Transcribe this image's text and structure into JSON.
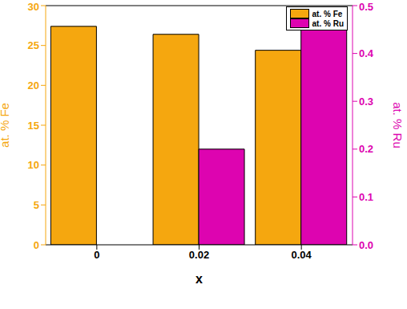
{
  "chart_data": {
    "type": "bar",
    "x_label": "x",
    "y_label": "at. % Fe",
    "y2_label": "at. % Ru",
    "categories": [
      "0",
      "0.02",
      "0.04"
    ],
    "series": [
      {
        "name": "at. % Fe",
        "color": "#f5a70f",
        "values": [
          27.4,
          26.4,
          24.4
        ]
      },
      {
        "name": "at. % Ru",
        "color": "#dd04b0",
        "axis": "y2",
        "values": [
          null,
          0.2,
          0.47
        ]
      }
    ],
    "ylim": [
      0,
      30
    ],
    "yticks": [
      0,
      5,
      10,
      15,
      20,
      25,
      30
    ],
    "y2lim": [
      0,
      0.5
    ],
    "y2ticks": [
      {
        "value": 0,
        "label": "0.0"
      },
      0.1,
      0.2,
      0.3,
      0.4,
      0.5
    ],
    "legend": "upper right",
    "grid": false
  }
}
